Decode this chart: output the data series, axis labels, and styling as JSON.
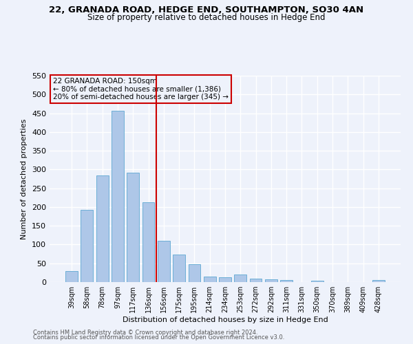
{
  "title1": "22, GRANADA ROAD, HEDGE END, SOUTHAMPTON, SO30 4AN",
  "title2": "Size of property relative to detached houses in Hedge End",
  "xlabel": "Distribution of detached houses by size in Hedge End",
  "ylabel": "Number of detached properties",
  "categories": [
    "39sqm",
    "58sqm",
    "78sqm",
    "97sqm",
    "117sqm",
    "136sqm",
    "156sqm",
    "175sqm",
    "195sqm",
    "214sqm",
    "234sqm",
    "253sqm",
    "272sqm",
    "292sqm",
    "311sqm",
    "331sqm",
    "350sqm",
    "370sqm",
    "389sqm",
    "409sqm",
    "428sqm"
  ],
  "values": [
    30,
    192,
    285,
    457,
    291,
    213,
    110,
    73,
    47,
    15,
    13,
    20,
    10,
    7,
    5,
    0,
    3,
    0,
    0,
    0,
    5
  ],
  "bar_color": "#aec7e8",
  "bar_edgecolor": "#6baed6",
  "vline_x": 5.5,
  "vline_color": "#cc0000",
  "annotation_title": "22 GRANADA ROAD: 150sqm",
  "annotation_line1": "← 80% of detached houses are smaller (1,386)",
  "annotation_line2": "20% of semi-detached houses are larger (345) →",
  "annotation_box_edgecolor": "#cc0000",
  "ylim": [
    0,
    550
  ],
  "yticks": [
    0,
    50,
    100,
    150,
    200,
    250,
    300,
    350,
    400,
    450,
    500,
    550
  ],
  "footer1": "Contains HM Land Registry data © Crown copyright and database right 2024.",
  "footer2": "Contains public sector information licensed under the Open Government Licence v3.0.",
  "background_color": "#eef2fb",
  "grid_color": "#ffffff"
}
